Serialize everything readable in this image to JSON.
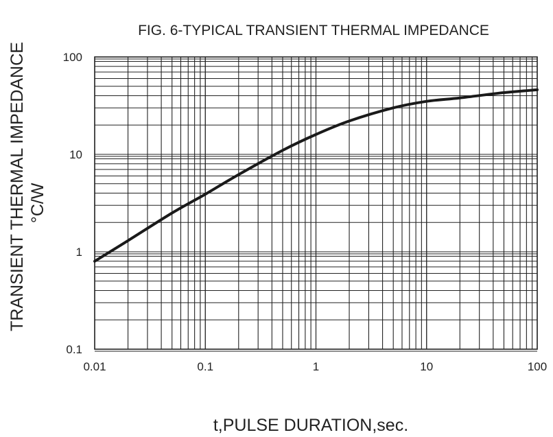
{
  "chart_data": {
    "type": "line",
    "title": "FIG. 6-TYPICAL TRANSIENT THERMAL IMPEDANCE",
    "xlabel": "t,PULSE DURATION,sec.",
    "ylabel": "TRANSIENT THERMAL IMPEDANCE",
    "ylabel_unit": "°C/W",
    "x_scale": "log",
    "y_scale": "log",
    "xlim": [
      0.01,
      100
    ],
    "ylim": [
      0.1,
      100
    ],
    "grid": true,
    "legend": "none",
    "x_ticks": [
      {
        "value": 0.01,
        "label": "0.01"
      },
      {
        "value": 0.1,
        "label": "0.1"
      },
      {
        "value": 1,
        "label": "1"
      },
      {
        "value": 10,
        "label": "10"
      },
      {
        "value": 100,
        "label": "100"
      }
    ],
    "y_ticks": [
      {
        "value": 0.1,
        "label": "0.1"
      },
      {
        "value": 1,
        "label": "1"
      },
      {
        "value": 10,
        "label": "10"
      },
      {
        "value": 100,
        "label": "100"
      }
    ],
    "series": [
      {
        "color": "#1a1a1a",
        "x": [
          0.01,
          0.02,
          0.05,
          0.1,
          0.2,
          0.5,
          1,
          2,
          5,
          10,
          20,
          50,
          100
        ],
        "y": [
          0.8,
          1.3,
          2.5,
          3.9,
          6.2,
          11,
          16,
          22,
          30,
          35,
          38,
          43,
          46
        ]
      }
    ]
  }
}
